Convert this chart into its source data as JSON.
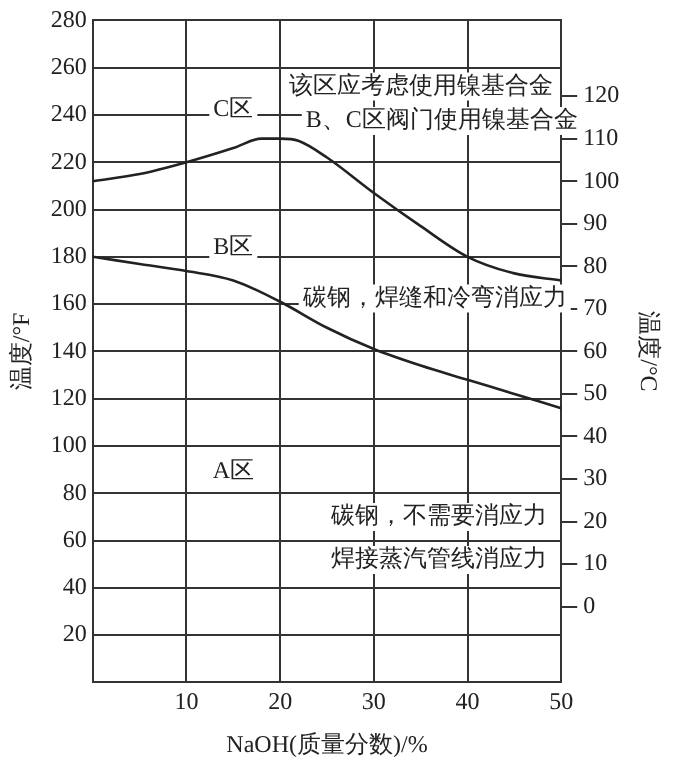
{
  "chart_data": {
    "type": "line",
    "xlabel": "NaOH(质量分数)/%",
    "ylabel": "温度/°F",
    "y2label": "温度/°C",
    "xlim": [
      0,
      50
    ],
    "xticks": [
      10,
      20,
      30,
      40,
      50
    ],
    "ylim": [
      0,
      280
    ],
    "yticks": [
      20,
      40,
      60,
      80,
      100,
      120,
      140,
      160,
      180,
      200,
      220,
      240,
      260,
      280
    ],
    "y2lim": [
      -17.8,
      137.8
    ],
    "y2ticks": [
      0,
      10,
      20,
      30,
      40,
      50,
      60,
      70,
      80,
      90,
      100,
      110,
      120
    ],
    "grid": true,
    "legend": false,
    "marker": "none",
    "line_style": "solid",
    "series": [
      {
        "color": "#222222",
        "x": [
          0,
          5,
          10,
          15,
          18,
          20,
          22,
          25,
          30,
          35,
          40,
          45,
          50
        ],
        "values": [
          212,
          215,
          220,
          226,
          230,
          230,
          229,
          222,
          207,
          193,
          180,
          173,
          170
        ]
      },
      {
        "color": "#222222",
        "x": [
          0,
          5,
          10,
          15,
          20,
          25,
          30,
          35,
          40,
          45,
          50
        ],
        "values": [
          180,
          177,
          174,
          170,
          161,
          150,
          141,
          134,
          128,
          122,
          116
        ]
      }
    ],
    "annotations": [
      "C区",
      "B区",
      "A区",
      "该区应考虑使用镍基合金",
      "B、C区阀门使用镍基合金",
      "碳钢，焊缝和冷弯消应力",
      "碳钢，不需要消应力",
      "焊接蒸汽管线消应力"
    ]
  }
}
